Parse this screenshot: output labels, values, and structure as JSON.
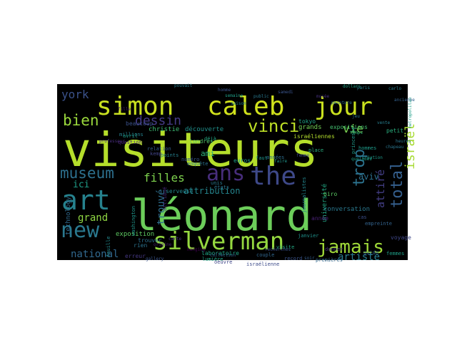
{
  "word_cloud": {
    "background_color": "#000000",
    "words": [
      {
        "text": "visiteurs",
        "color": "#b5de2b"
      },
      {
        "text": "léonard",
        "color": "#6ccd5a"
      },
      {
        "text": "simon",
        "color": "#c8e020"
      },
      {
        "text": "caleb",
        "color": "#d0e11c"
      },
      {
        "text": "jour",
        "color": "#cae11f"
      },
      {
        "text": "art",
        "color": "#26828e"
      },
      {
        "text": "silverman",
        "color": "#95d840"
      },
      {
        "text": "new",
        "color": "#2a788e"
      },
      {
        "text": "the",
        "color": "#3e4989"
      },
      {
        "text": "ans",
        "color": "#472d7b"
      },
      {
        "text": "jamais",
        "color": "#a0da39"
      },
      {
        "text": "museum",
        "color": "#2d708e"
      },
      {
        "text": "vinci",
        "color": "#bddf26"
      },
      {
        "text": "bien",
        "color": "#9bd93c"
      },
      {
        "text": "dessin",
        "color": "#443a83"
      },
      {
        "text": "total",
        "color": "#355f8d"
      },
      {
        "text": "trop",
        "color": "#2c728e"
      },
      {
        "text": "york",
        "color": "#3b528b"
      },
      {
        "text": "vie",
        "color": "#7ad151"
      },
      {
        "text": "filles",
        "color": "#7fd34e"
      },
      {
        "text": "national",
        "color": "#31688e"
      },
      {
        "text": "artiste",
        "color": "#287c8e"
      },
      {
        "text": "israël",
        "color": "#a8db34"
      },
      {
        "text": "grand",
        "color": "#90d743"
      },
      {
        "text": "attribution",
        "color": "#25858e"
      },
      {
        "text": "trouvé",
        "color": "#2e6e8e"
      },
      {
        "text": "attiré",
        "color": "#433e85"
      },
      {
        "text": "aviv",
        "color": "#2d708e"
      },
      {
        "text": "ici",
        "color": "#1f9e89"
      },
      {
        "text": "ami",
        "color": "#2db27d"
      },
      {
        "text": "christie",
        "color": "#3dbc74"
      },
      {
        "text": "découverte",
        "color": "#21918c"
      },
      {
        "text": "londres",
        "color": "#54c568"
      },
      {
        "text": "euros",
        "color": "#1e9b8a"
      },
      {
        "text": "exposition",
        "color": "#5ec962"
      },
      {
        "text": "laboratoire",
        "color": "#20a486"
      },
      {
        "text": "expositions",
        "color": "#44bf70"
      },
      {
        "text": "grands",
        "color": "#74d055"
      },
      {
        "text": "israéliennes",
        "color": "#b2dd2d"
      },
      {
        "text": "tokyo",
        "color": "#20a386"
      },
      {
        "text": "serveuse",
        "color": "#24868e"
      },
      {
        "text": "université",
        "color": "#22a884"
      },
      {
        "text": "conversation",
        "color": "#2a788e"
      },
      {
        "text": "femmes",
        "color": "#1fa088"
      },
      {
        "text": "petit",
        "color": "#29af7f"
      },
      {
        "text": "technology",
        "color": "#306a8e"
      },
      {
        "text": "numéro",
        "color": "#38588c"
      },
      {
        "text": "attribué",
        "color": "#482878"
      },
      {
        "text": "millions",
        "color": "#26818e"
      },
      {
        "text": "beaucoup",
        "color": "#3b528b"
      },
      {
        "text": "question",
        "color": "#482475"
      },
      {
        "text": "trouver",
        "color": "#2d708e"
      },
      {
        "text": "israélienne",
        "color": "#3e4c8a"
      },
      {
        "text": "empreinte",
        "color": "#33638d"
      },
      {
        "text": "princesse",
        "color": "#1f9a8a"
      },
      {
        "text": "relation",
        "color": "#365d8d"
      },
      {
        "text": "place",
        "color": "#29af7f"
      },
      {
        "text": "déjà",
        "color": "#24aa83"
      },
      {
        "text": "points",
        "color": "#27808e"
      },
      {
        "text": "enquête",
        "color": "#2c728e"
      },
      {
        "text": "record",
        "color": "#3a538b"
      },
      {
        "text": "janvier",
        "color": "#20928c"
      },
      {
        "text": "année",
        "color": "#482173"
      },
      {
        "text": "voyage",
        "color": "#3f4788"
      },
      {
        "text": "washington",
        "color": "#1f958b"
      },
      {
        "text": "erreur",
        "color": "#453882"
      },
      {
        "text": "avril",
        "color": "#1e9c89"
      },
      {
        "text": "feuille",
        "color": "#23898e"
      },
      {
        "text": "rien",
        "color": "#2c738e"
      },
      {
        "text": "faut",
        "color": "#1f968b"
      },
      {
        "text": "biro",
        "color": "#5ac864"
      },
      {
        "text": "unis",
        "color": "#2a778e"
      },
      {
        "text": "guide",
        "color": "#33638d"
      },
      {
        "text": "donner",
        "color": "#46327e"
      },
      {
        "text": "journalistes",
        "color": "#24868e"
      },
      {
        "text": "états",
        "color": "#2c738e"
      },
      {
        "text": "kemp",
        "color": "#414487"
      },
      {
        "text": "premières",
        "color": "#31688e"
      },
      {
        "text": "hommes",
        "color": "#1e9b8a"
      },
      {
        "text": "cas",
        "color": "#3c4f8a"
      },
      {
        "text": "années",
        "color": "#2e6f8e"
      },
      {
        "text": "lumière",
        "color": "#20a386"
      },
      {
        "text": "visite",
        "color": "#23a983"
      },
      {
        "text": "couple",
        "color": "#31678e"
      },
      {
        "text": "hanging",
        "color": "#440154"
      },
      {
        "text": "collection",
        "color": "#34608d"
      },
      {
        "text": "gallery",
        "color": "#3a548c"
      },
      {
        "text": "carte",
        "color": "#46307e"
      },
      {
        "text": "oeuvre",
        "color": "#404688"
      },
      {
        "text": "faire",
        "color": "#1f958b"
      },
      {
        "text": "metropolitan",
        "color": "#1f9f88"
      },
      {
        "text": "chapeau",
        "color": "#2a768e"
      },
      {
        "text": "soir",
        "color": "#355e8d"
      },
      {
        "text": "fille",
        "color": "#482071"
      },
      {
        "text": "temps",
        "color": "#32b67a"
      },
      {
        "text": "recherches",
        "color": "#3b518b"
      },
      {
        "text": "dollars",
        "color": "#20a386"
      },
      {
        "text": "pouvait",
        "color": "#287d8e"
      },
      {
        "text": "musée",
        "color": "#46317e"
      },
      {
        "text": "professeur",
        "color": "#472c7a"
      },
      {
        "text": "jeu",
        "color": "#2c718e"
      },
      {
        "text": "carlo",
        "color": "#287d8e"
      },
      {
        "text": "paris",
        "color": "#277f8e"
      },
      {
        "text": "ancienne",
        "color": "#34618d"
      },
      {
        "text": "création",
        "color": "#1f998a"
      },
      {
        "text": "vente",
        "color": "#277e8e"
      },
      {
        "text": "peinture",
        "color": "#2e6e8e"
      },
      {
        "text": "femme",
        "color": "#3e4a89"
      },
      {
        "text": "quelques",
        "color": "#1fa088"
      },
      {
        "text": "heures",
        "color": "#2b748e"
      },
      {
        "text": "semaine",
        "color": "#1f9f88"
      },
      {
        "text": "public",
        "color": "#29798e"
      },
      {
        "text": "homme",
        "color": "#3b528b"
      },
      {
        "text": "saison",
        "color": "#26828e"
      },
      {
        "text": "samedi",
        "color": "#3a548c"
      },
      {
        "text": "origine",
        "color": "#481f70"
      }
    ]
  }
}
